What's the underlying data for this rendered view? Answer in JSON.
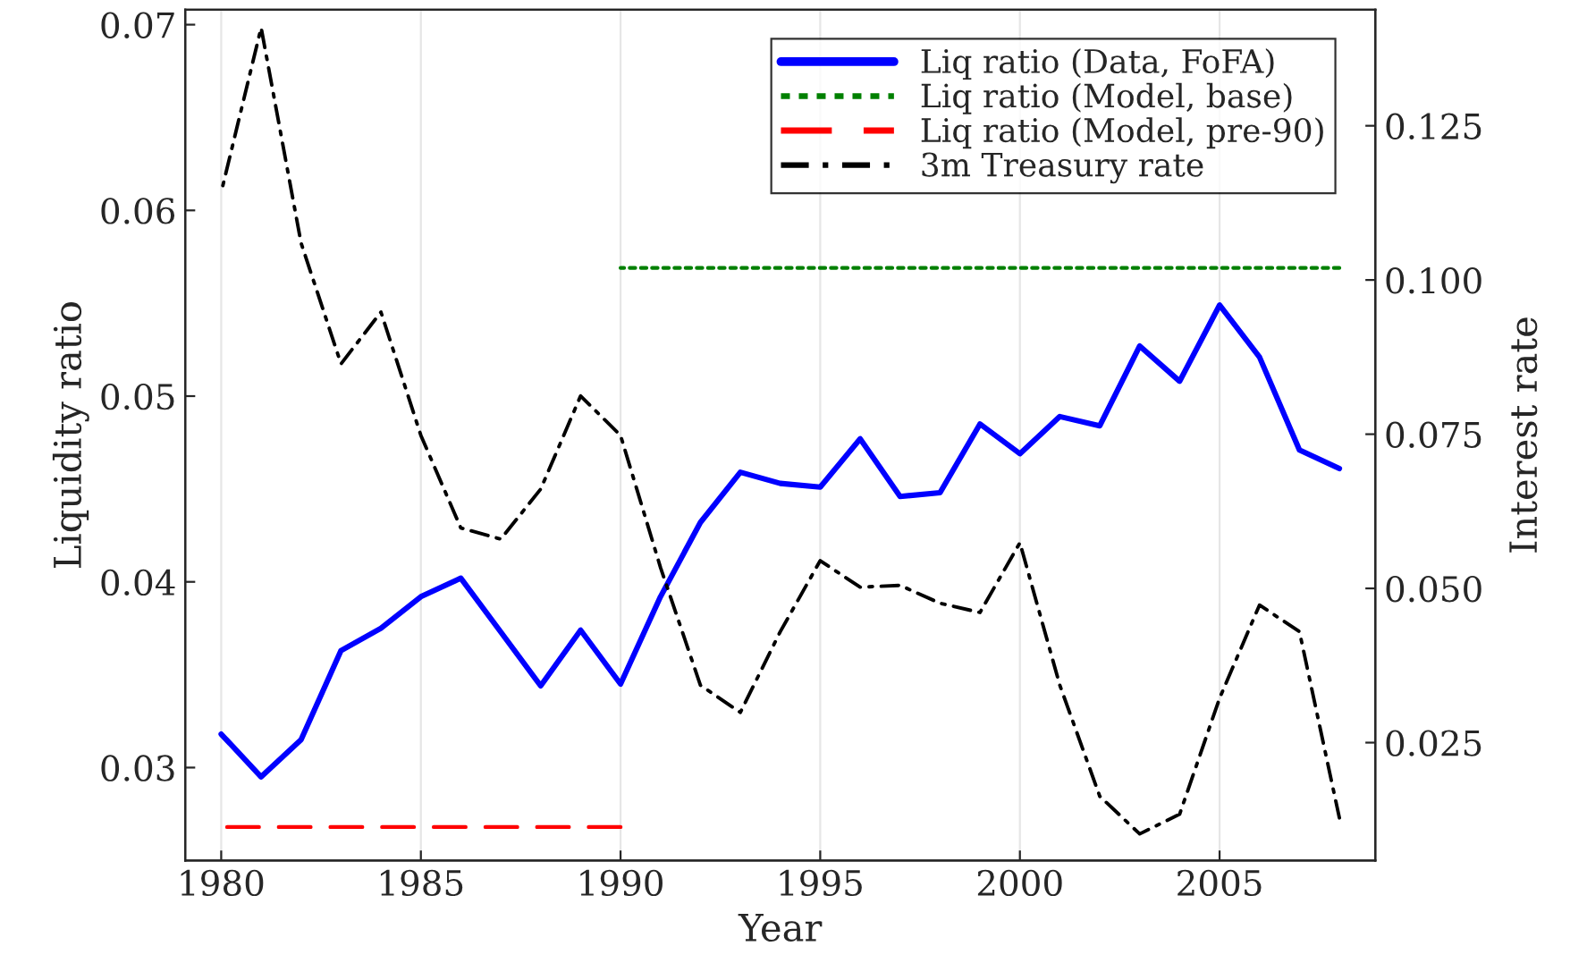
{
  "chart_data": {
    "type": "line",
    "xlabel": "Year",
    "ylabel": "Liquidity ratio",
    "y2label": "Interest rate",
    "xlim": [
      1979.1,
      2008.9
    ],
    "xticks": [
      1980,
      1985,
      1990,
      1995,
      2000,
      2005
    ],
    "ylim": [
      0.025,
      0.0708
    ],
    "yticks": [
      0.03,
      0.04,
      0.05,
      0.06,
      0.07
    ],
    "y2lim": [
      0.0059,
      0.1438
    ],
    "y2ticks": [
      0.025,
      {
        "value": 0.05,
        "label": "0.050"
      },
      0.075,
      {
        "value": 0.1,
        "label": "0.100"
      },
      0.125
    ],
    "grid": "x",
    "legend": "top right",
    "series": [
      {
        "name": "Liq ratio (Data, FoFA)",
        "color": "#0000ff",
        "line_style": "solid",
        "x": [
          1980,
          1981,
          1982,
          1983,
          1984,
          1985,
          1986,
          1987,
          1988,
          1989,
          1990,
          1991,
          1992,
          1993,
          1994,
          1995,
          1996,
          1997,
          1998,
          1999,
          2000,
          2001,
          2002,
          2003,
          2004,
          2005,
          2006,
          2007,
          2008
        ],
        "values": [
          0.0318,
          0.0295,
          0.0315,
          0.0363,
          0.0375,
          0.0392,
          0.0402,
          0.0373,
          0.0344,
          0.0374,
          0.0345,
          0.0392,
          0.0432,
          0.0459,
          0.0453,
          0.0451,
          0.0477,
          0.0446,
          0.0448,
          0.0485,
          0.0469,
          0.0489,
          0.0484,
          0.0527,
          0.0508,
          0.0549,
          0.0521,
          0.0471,
          0.0461
        ]
      },
      {
        "name": "Liq ratio (Model, base)",
        "color": "#008000",
        "line_style": "dotted",
        "x": [
          1990,
          2008
        ],
        "values": [
          0.0569,
          0.0569
        ]
      },
      {
        "name": "Liq ratio (Model, pre-90)",
        "color": "#ff0000",
        "line_style": "dashed",
        "x": [
          1980,
          1990
        ],
        "values": [
          0.0268,
          0.0268
        ]
      },
      {
        "name": "3m Treasury rate",
        "color": "#000000",
        "line_style": "dashdot",
        "axis": "y2",
        "x": [
          1980,
          1981,
          1982,
          1983,
          1984,
          1985,
          1986,
          1987,
          1988,
          1989,
          1990,
          1991,
          1992,
          1993,
          1994,
          1995,
          1996,
          1997,
          1998,
          1999,
          2000,
          2001,
          2002,
          2003,
          2004,
          2005,
          2006,
          2007,
          2008
        ],
        "values": [
          0.1142,
          0.1409,
          0.106,
          0.0864,
          0.0948,
          0.0748,
          0.0598,
          0.058,
          0.0661,
          0.0812,
          0.0748,
          0.0534,
          0.0343,
          0.0299,
          0.043,
          0.0545,
          0.0502,
          0.0505,
          0.0476,
          0.0461,
          0.0574,
          0.0343,
          0.0163,
          0.0102,
          0.0134,
          0.0322,
          0.0473,
          0.043,
          0.0128
        ]
      }
    ]
  }
}
